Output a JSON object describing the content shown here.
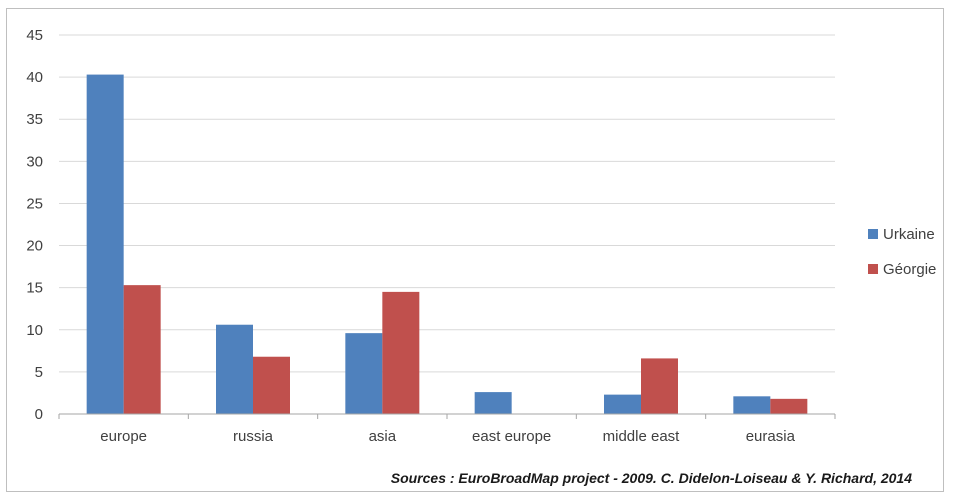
{
  "chart_data": {
    "type": "bar",
    "categories": [
      "europe",
      "russia",
      "asia",
      "east europe",
      "middle east",
      "eurasia"
    ],
    "series": [
      {
        "name": "Urkaine",
        "values": [
          40.3,
          10.6,
          9.6,
          2.6,
          2.3,
          2.1
        ],
        "color": "#4f81bd"
      },
      {
        "name": "Géorgie",
        "values": [
          15.3,
          6.8,
          14.5,
          0,
          6.6,
          1.8
        ],
        "color": "#c0504d"
      }
    ],
    "ylim": [
      0,
      45
    ],
    "yticks": [
      0,
      5,
      10,
      15,
      20,
      25,
      30,
      35,
      40,
      45
    ],
    "grid": true,
    "legend_position": "right",
    "source": "Sources : EuroBroadMap project - 2009. C. Didelon-Loiseau & Y. Richard, 2014"
  }
}
